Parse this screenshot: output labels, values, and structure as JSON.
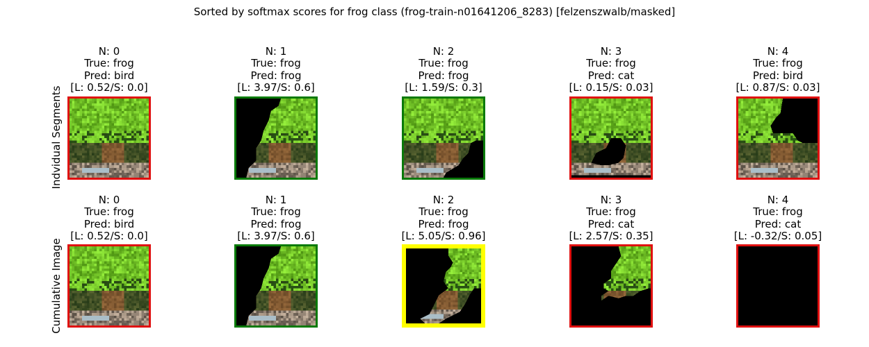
{
  "title": "Sorted by softmax scores for frog class (frog-train-n01641206_8283) [felzenszwalb/masked]",
  "rows": [
    {
      "label": "Indvidual Segments",
      "panels": [
        {
          "n": "N: 0",
          "true": "True: frog",
          "pred": "Pred: bird",
          "score": "[L: 0.52/S: 0.0]",
          "border_color": "#e01010",
          "mask": "none"
        },
        {
          "n": "N: 1",
          "true": "True: frog",
          "pred": "Pred: frog",
          "score": "[L: 3.97/S: 0.6]",
          "border_color": "#0a7a0a",
          "mask": "left"
        },
        {
          "n": "N: 2",
          "true": "True: frog",
          "pred": "Pred: frog",
          "score": "[L: 1.59/S: 0.3]",
          "border_color": "#0a7a0a",
          "mask": "bottom-right"
        },
        {
          "n": "N: 3",
          "true": "True: frog",
          "pred": "Pred: cat",
          "score": "[L: 0.15/S: 0.03]",
          "border_color": "#e01010",
          "mask": "center-blob"
        },
        {
          "n": "N: 4",
          "true": "True: frog",
          "pred": "Pred: bird",
          "score": "[L: 0.87/S: 0.03]",
          "border_color": "#e01010",
          "mask": "top-right"
        }
      ]
    },
    {
      "label": "Cumulative Image",
      "panels": [
        {
          "n": "N: 0",
          "true": "True: frog",
          "pred": "Pred: bird",
          "score": "[L: 0.52/S: 0.0]",
          "border_color": "#e01010",
          "mask": "none"
        },
        {
          "n": "N: 1",
          "true": "True: frog",
          "pred": "Pred: frog",
          "score": "[L: 3.97/S: 0.6]",
          "border_color": "#0a7a0a",
          "mask": "left"
        },
        {
          "n": "N: 2",
          "true": "True: frog",
          "pred": "Pred: frog",
          "score": "[L: 5.05/S: 0.96]",
          "border_color": "#ffff00",
          "mask": "cumulative-2"
        },
        {
          "n": "N: 3",
          "true": "True: frog",
          "pred": "Pred: cat",
          "score": "[L: 2.57/S: 0.35]",
          "border_color": "#e01010",
          "mask": "cumulative-3"
        },
        {
          "n": "N: 4",
          "true": "True: frog",
          "pred": "Pred: cat",
          "score": "[L: -0.32/S: 0.05]",
          "border_color": "#e01010",
          "mask": "all"
        }
      ]
    }
  ]
}
